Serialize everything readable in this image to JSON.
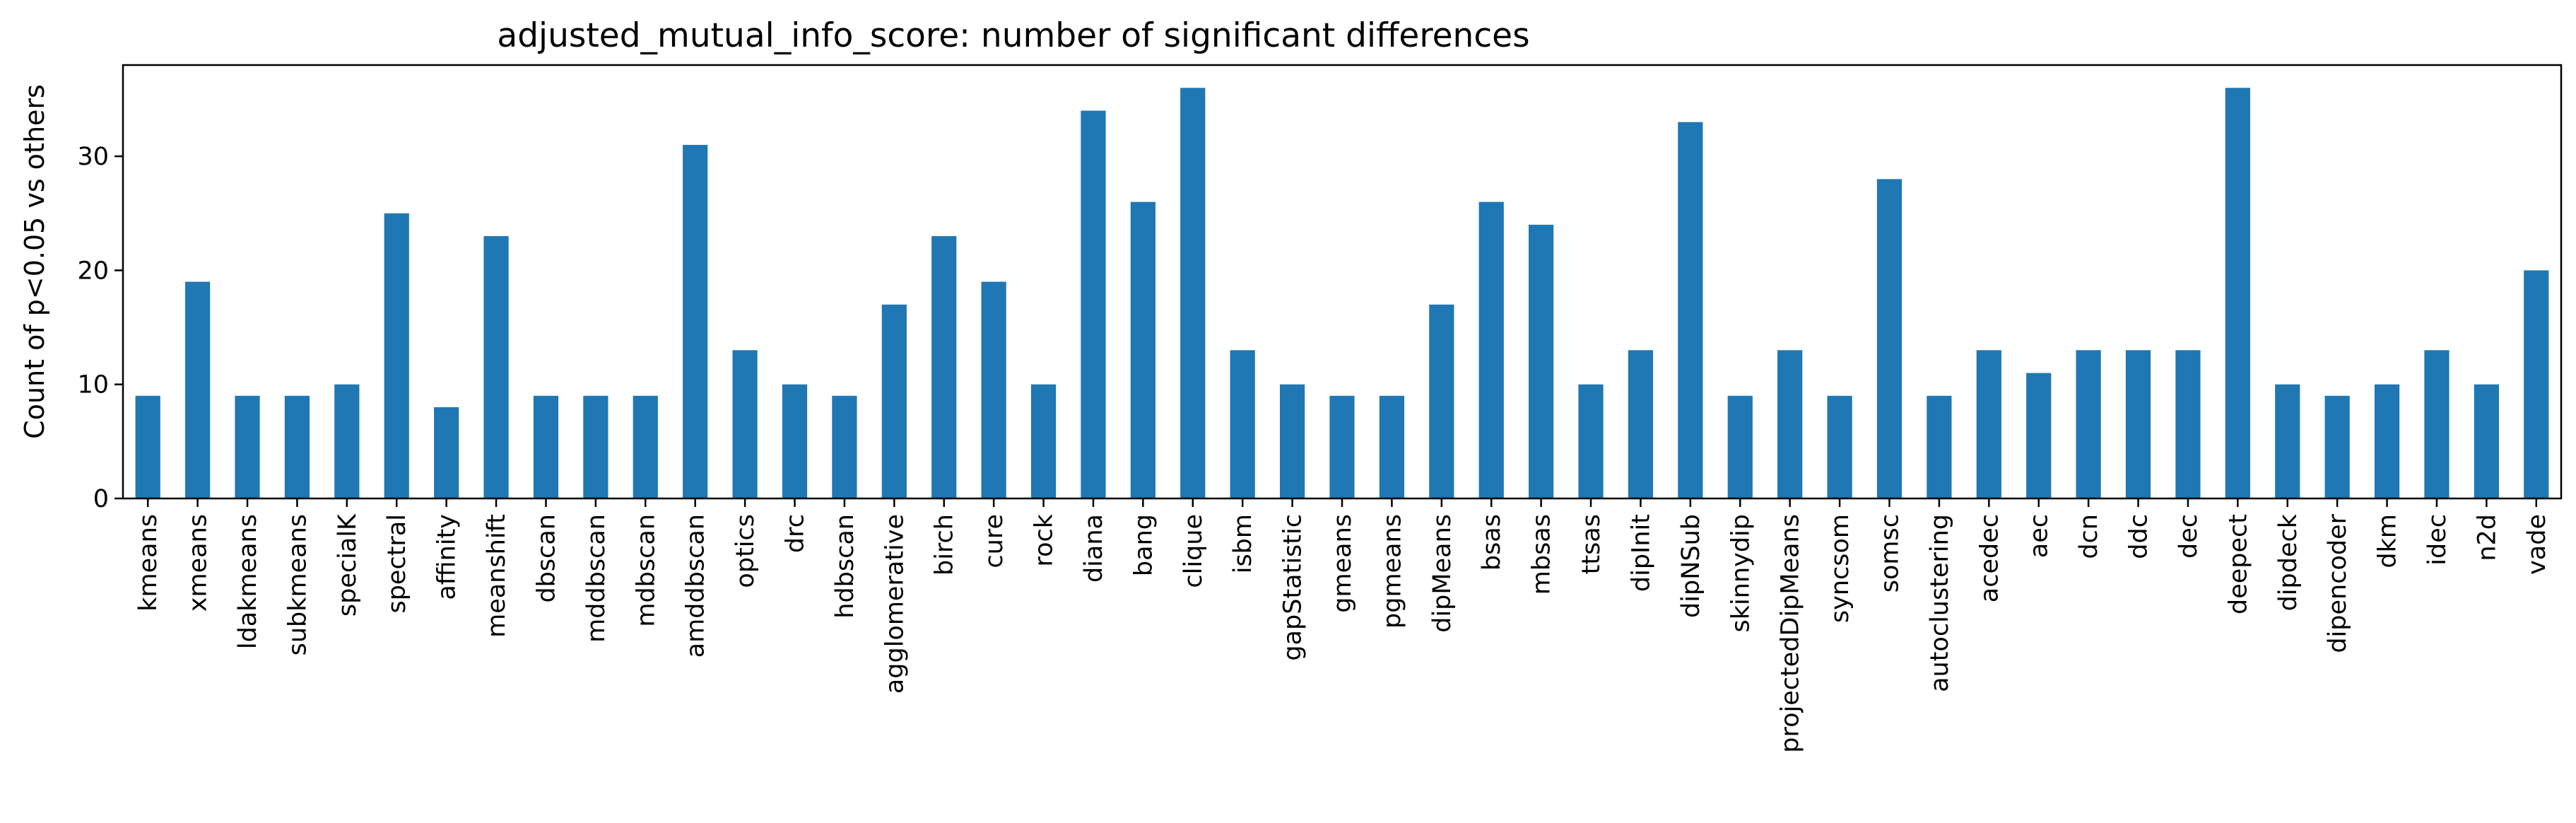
{
  "chart_data": {
    "type": "bar",
    "title": "adjusted_mutual_info_score: number of significant differences",
    "xlabel": "",
    "ylabel": "Count of p<0.05 vs others",
    "ylim": [
      0,
      38
    ],
    "yticks": [
      0,
      10,
      20,
      30
    ],
    "bar_color": "#1f77b4",
    "grid": false,
    "legend": "none",
    "categories": [
      "kmeans",
      "xmeans",
      "ldakmeans",
      "subkmeans",
      "specialK",
      "spectral",
      "affinity",
      "meanshift",
      "dbscan",
      "mddbscan",
      "mdbscan",
      "amddbscan",
      "optics",
      "drc",
      "hdbscan",
      "agglomerative",
      "birch",
      "cure",
      "rock",
      "diana",
      "bang",
      "clique",
      "isbm",
      "gapStatistic",
      "gmeans",
      "pgmeans",
      "dipMeans",
      "bsas",
      "mbsas",
      "ttsas",
      "dipInit",
      "dipNSub",
      "skinnydip",
      "projectedDipMeans",
      "syncsom",
      "somsc",
      "autoclustering",
      "acedec",
      "aec",
      "dcn",
      "ddc",
      "dec",
      "deepect",
      "dipdeck",
      "dipencoder",
      "dkm",
      "idec",
      "n2d",
      "vade"
    ],
    "values": [
      9,
      19,
      9,
      9,
      10,
      25,
      8,
      23,
      9,
      9,
      9,
      31,
      13,
      10,
      9,
      17,
      23,
      19,
      10,
      34,
      26,
      36,
      13,
      10,
      9,
      9,
      17,
      26,
      24,
      10,
      13,
      33,
      9,
      13,
      9,
      28,
      9,
      13,
      11,
      13,
      13,
      13,
      36,
      10,
      9,
      10,
      13,
      10,
      20
    ]
  }
}
